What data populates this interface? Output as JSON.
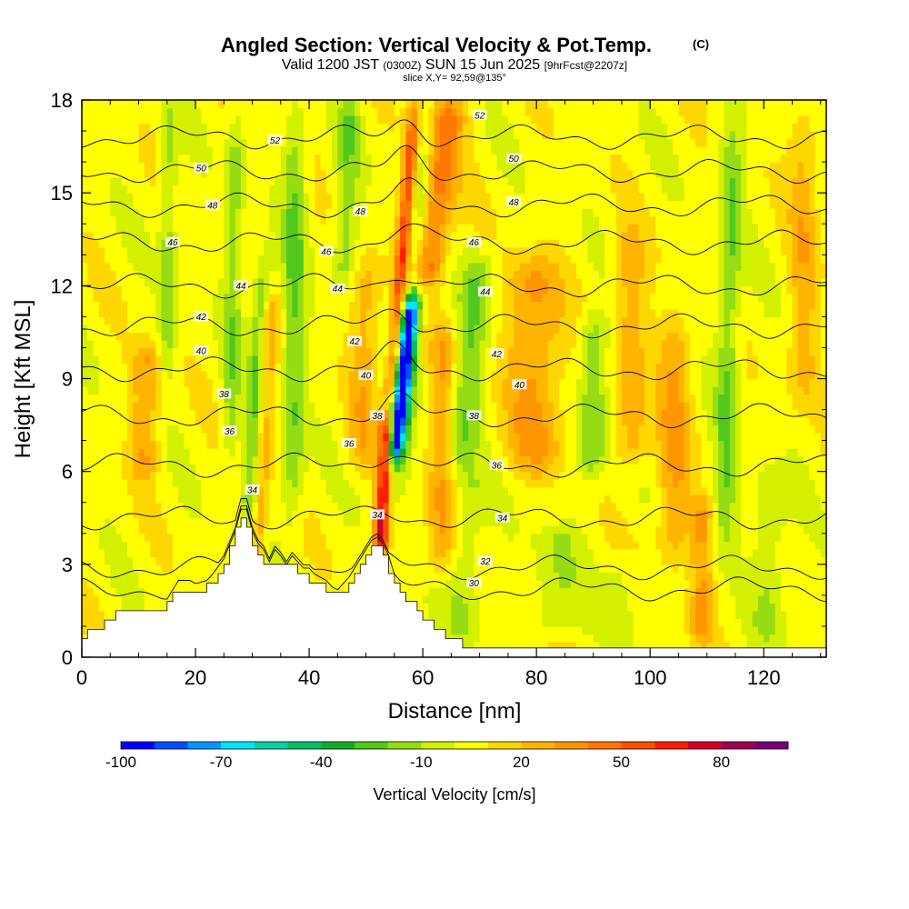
{
  "chart_data": {
    "type": "heatmap",
    "title": "Angled Section: Vertical Velocity & Pot.Temp.",
    "title_mark": "(C)",
    "subtitle_parts": [
      "Valid 1200 JST",
      "(0300Z)",
      "SUN 15 Jun 2025",
      "[9hrFcst@2207z]"
    ],
    "slice_text": "slice X,Y= 92,59@135°",
    "xlabel": "Distance [nm]",
    "ylabel": "Height [Kft MSL]",
    "xlim": [
      0,
      131
    ],
    "ylim": [
      0,
      18
    ],
    "x_ticks": [
      0,
      20,
      40,
      60,
      80,
      100,
      120
    ],
    "y_ticks": [
      0,
      3,
      6,
      9,
      12,
      15,
      18
    ],
    "colorbar": {
      "label": "Vertical Velocity [cm/s]",
      "tick_values": [
        -100,
        -70,
        -40,
        -10,
        20,
        50,
        80
      ],
      "tick_labels": [
        "-100",
        "-70",
        "-40",
        "-10",
        "20",
        "50",
        "80"
      ],
      "levels": [
        -100,
        -90,
        -80,
        -70,
        -60,
        -50,
        -40,
        -30,
        -20,
        -10,
        0,
        10,
        20,
        30,
        40,
        50,
        60,
        70,
        80,
        90,
        100
      ],
      "colors": [
        "#0000ff",
        "#0050ff",
        "#0096ff",
        "#00e6ff",
        "#00d2a0",
        "#00be64",
        "#14aa28",
        "#50c81e",
        "#96dc14",
        "#d2f000",
        "#ffff00",
        "#ffd700",
        "#ffb400",
        "#ff9600",
        "#ff7800",
        "#ff5000",
        "#ff1e00",
        "#d20028",
        "#a00050",
        "#780078"
      ]
    },
    "background_value": 5,
    "velocity_features": [
      {
        "x": 55,
        "w": 1.4,
        "h0": 6.5,
        "h1": 11.5,
        "v": -80,
        "tilt": 0.6
      },
      {
        "x": 54.5,
        "w": 2.2,
        "h0": 5,
        "h1": 18,
        "v": -35,
        "tilt": 0.5
      },
      {
        "x": 52.5,
        "w": 1.3,
        "h0": 3.5,
        "h1": 7.5,
        "v": 72,
        "tilt": 0.3
      },
      {
        "x": 54,
        "w": 1.3,
        "h0": 7.5,
        "h1": 18,
        "v": 55,
        "tilt": 0.45
      },
      {
        "x": 60,
        "w": 3.5,
        "h0": 12,
        "h1": 18,
        "v": 45,
        "tilt": 0.7
      },
      {
        "x": 63,
        "w": 2.5,
        "h0": 2.5,
        "h1": 11,
        "v": 25,
        "tilt": 0.1
      },
      {
        "x": 66,
        "w": 3,
        "h0": 6,
        "h1": 13,
        "v": -25,
        "tilt": 0.6
      },
      {
        "x": 67,
        "w": 3,
        "h0": 0.5,
        "h1": 6,
        "v": -15,
        "tilt": 0.2
      },
      {
        "x": 29.5,
        "w": 1.6,
        "h0": 4,
        "h1": 13,
        "v": -35,
        "tilt": 0.3
      },
      {
        "x": 30.5,
        "w": 1.6,
        "h0": 3,
        "h1": 12,
        "v": 30,
        "tilt": 0.3
      },
      {
        "x": 37,
        "w": 2,
        "h0": 4,
        "h1": 18,
        "v": -25,
        "tilt": 0.05
      },
      {
        "x": 26,
        "w": 1.5,
        "h0": 6,
        "h1": 18,
        "v": -20,
        "tilt": 0.1
      },
      {
        "x": 15,
        "w": 1.5,
        "h0": 9,
        "h1": 18,
        "v": -20,
        "tilt": 0.05
      },
      {
        "x": 11,
        "w": 2.5,
        "h0": 6,
        "h1": 10,
        "v": 25,
        "tilt": 0.1
      },
      {
        "x": 46,
        "w": 2,
        "h0": 12,
        "h1": 18,
        "v": -20,
        "tilt": 0.2
      },
      {
        "x": 49,
        "w": 2.5,
        "h0": 6,
        "h1": 13,
        "v": 20,
        "tilt": 0.2
      },
      {
        "x": 80,
        "w": 5,
        "h0": 6,
        "h1": 13,
        "v": 28,
        "tilt": -0.1
      },
      {
        "x": 90,
        "w": 2.5,
        "h0": 6,
        "h1": 11,
        "v": -25,
        "tilt": 0.05
      },
      {
        "x": 97,
        "w": 3,
        "h0": 6,
        "h1": 14,
        "v": 22,
        "tilt": -0.1
      },
      {
        "x": 104,
        "w": 3,
        "h0": 3,
        "h1": 11,
        "v": 25,
        "tilt": 0.05
      },
      {
        "x": 113,
        "w": 2,
        "h0": 3,
        "h1": 18,
        "v": -25,
        "tilt": 0.1
      },
      {
        "x": 109,
        "w": 2,
        "h0": 0.5,
        "h1": 5,
        "v": 25,
        "tilt": 0.05
      },
      {
        "x": 84,
        "w": 4,
        "h0": 1,
        "h1": 4,
        "v": -15,
        "tilt": 0
      },
      {
        "x": 95,
        "w": 3,
        "h0": 0.5,
        "h1": 3,
        "v": -10,
        "tilt": 0
      },
      {
        "x": 121,
        "w": 3,
        "h0": 0.5,
        "h1": 6,
        "v": -15,
        "tilt": 0.05
      },
      {
        "x": 127,
        "w": 2.5,
        "h0": 8,
        "h1": 18,
        "v": 20,
        "tilt": 0
      }
    ],
    "terrain": {
      "x": [
        0,
        0.5,
        1.5,
        5,
        7,
        9,
        11,
        13,
        15,
        17,
        19,
        21,
        23,
        25,
        27,
        28,
        29,
        30,
        31,
        32,
        33,
        34,
        35,
        36,
        37,
        38,
        39,
        40,
        41,
        42,
        43,
        44,
        45,
        46,
        47,
        48,
        49,
        50,
        51,
        52,
        53,
        54,
        55,
        56,
        57,
        58,
        59,
        60,
        61,
        62,
        63,
        64,
        65,
        66,
        67,
        68,
        69,
        70,
        71,
        72,
        131
      ],
      "kft": [
        0.8,
        0.6,
        0.9,
        1.1,
        1.5,
        1.6,
        1.6,
        1.4,
        1.6,
        2.2,
        2.2,
        2.0,
        2.4,
        2.9,
        3.8,
        4.5,
        4.5,
        3.8,
        3.4,
        3.2,
        2.8,
        3.2,
        3.0,
        2.7,
        3.0,
        2.8,
        2.6,
        2.6,
        2.4,
        2.3,
        2.2,
        2.0,
        1.9,
        2.1,
        2.3,
        2.6,
        2.9,
        3.2,
        3.5,
        3.6,
        3.4,
        3.0,
        2.4,
        2.2,
        1.9,
        1.8,
        1.6,
        1.4,
        1.2,
        1.0,
        0.9,
        0.7,
        0.6,
        0.5,
        0.4,
        0.4,
        0.35,
        0.35,
        0.3,
        0.3,
        0.3
      ]
    },
    "isentropes": [
      {
        "theta": 30,
        "base": 2.2,
        "label": "30"
      },
      {
        "theta": 32,
        "base": 2.9,
        "label": "32"
      },
      {
        "theta": 34,
        "base": 4.5,
        "label": "34"
      },
      {
        "theta": 36,
        "base": 6.2,
        "label": "36"
      },
      {
        "theta": 38,
        "base": 7.8,
        "label": "38"
      },
      {
        "theta": 40,
        "base": 9.3,
        "label": "40"
      },
      {
        "theta": 42,
        "base": 10.7,
        "label": "42"
      },
      {
        "theta": 44,
        "base": 12.0,
        "label": "44"
      },
      {
        "theta": 46,
        "base": 13.4,
        "label": "46"
      },
      {
        "theta": 48,
        "base": 14.6,
        "label": "48"
      },
      {
        "theta": 50,
        "base": 15.7,
        "label": "50"
      },
      {
        "theta": 52,
        "base": 16.8,
        "label": "52"
      }
    ],
    "contour_labels": [
      {
        "text": "52",
        "x": 34,
        "y": 16.7
      },
      {
        "text": "52",
        "x": 70,
        "y": 17.5
      },
      {
        "text": "50",
        "x": 21,
        "y": 15.8
      },
      {
        "text": "50",
        "x": 76,
        "y": 16.1
      },
      {
        "text": "48",
        "x": 23,
        "y": 14.6
      },
      {
        "text": "48",
        "x": 76,
        "y": 14.7
      },
      {
        "text": "48",
        "x": 49,
        "y": 14.4
      },
      {
        "text": "46",
        "x": 16,
        "y": 13.4
      },
      {
        "text": "46",
        "x": 43,
        "y": 13.1
      },
      {
        "text": "46",
        "x": 69,
        "y": 13.4
      },
      {
        "text": "44",
        "x": 28,
        "y": 12.0
      },
      {
        "text": "44",
        "x": 71,
        "y": 11.8
      },
      {
        "text": "44",
        "x": 45,
        "y": 11.9
      },
      {
        "text": "42",
        "x": 21,
        "y": 11.0
      },
      {
        "text": "42",
        "x": 48,
        "y": 10.2
      },
      {
        "text": "42",
        "x": 73,
        "y": 9.8
      },
      {
        "text": "40",
        "x": 21,
        "y": 9.9
      },
      {
        "text": "40",
        "x": 50,
        "y": 9.1
      },
      {
        "text": "40",
        "x": 77,
        "y": 8.8
      },
      {
        "text": "38",
        "x": 25,
        "y": 8.5
      },
      {
        "text": "38",
        "x": 52,
        "y": 7.8
      },
      {
        "text": "38",
        "x": 69,
        "y": 7.8
      },
      {
        "text": "36",
        "x": 26,
        "y": 7.3
      },
      {
        "text": "36",
        "x": 47,
        "y": 6.9
      },
      {
        "text": "36",
        "x": 73,
        "y": 6.2
      },
      {
        "text": "34",
        "x": 30,
        "y": 5.4
      },
      {
        "text": "34",
        "x": 52,
        "y": 4.6
      },
      {
        "text": "34",
        "x": 74,
        "y": 4.5
      },
      {
        "text": "32",
        "x": 71,
        "y": 3.1
      },
      {
        "text": "30",
        "x": 69,
        "y": 2.4
      }
    ]
  }
}
